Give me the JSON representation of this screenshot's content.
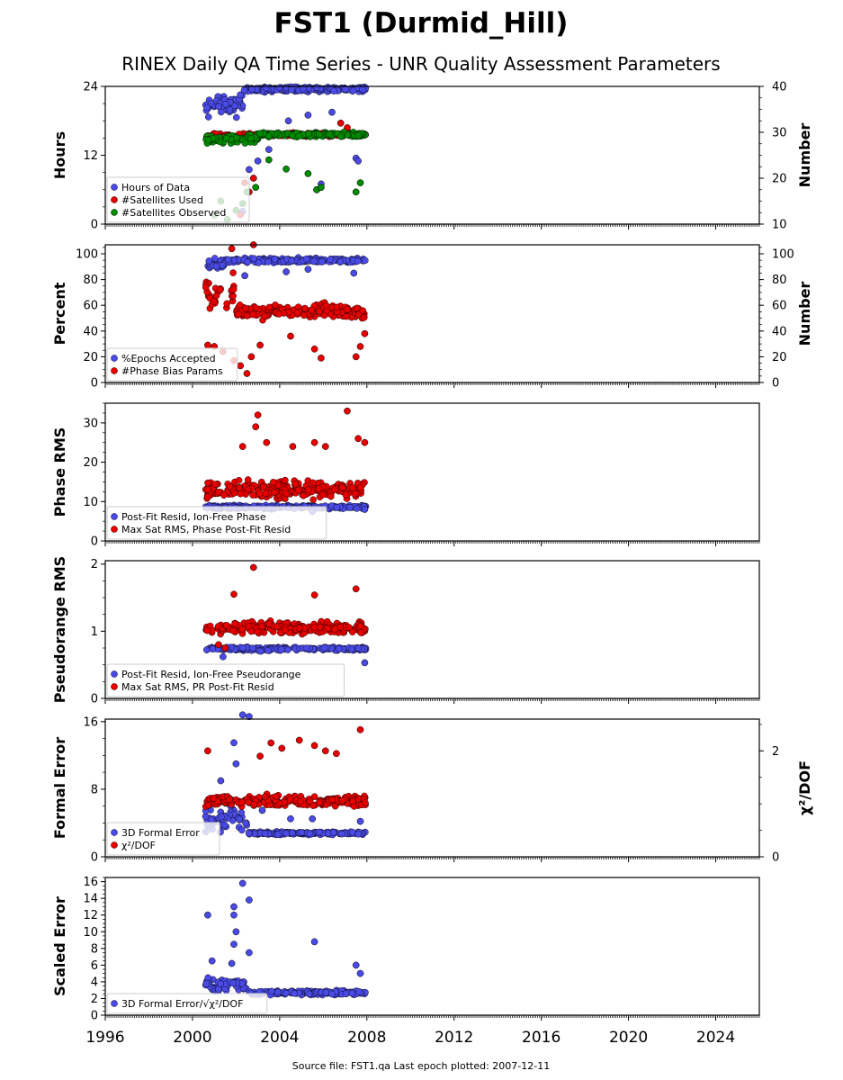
{
  "figure": {
    "title": "FST1 (Durmid_Hill)",
    "subtitle": "RINEX Daily QA Time Series - UNR Quality Assessment Parameters",
    "footer": "Source file: FST1.qa Last epoch plotted: 2007-12-11"
  },
  "colors": {
    "blue": "#4a4ae6",
    "red": "#e60000",
    "green": "#008a00",
    "edge": "#000000"
  },
  "chart_data": [
    {
      "type": "scatter",
      "id": "hours",
      "ylabel": "Hours",
      "ylabel_right": "Number",
      "xlim": [
        1996,
        2026
      ],
      "ylim": [
        0,
        24
      ],
      "yticks": [
        0,
        12,
        24
      ],
      "ylim_right": [
        10,
        40
      ],
      "yticks_right": [
        10,
        20,
        30,
        40
      ],
      "legend": "lower-left",
      "series": [
        {
          "name": "Hours of Data",
          "color": "blue",
          "axis": "left",
          "base": 23.5,
          "jitter": 0.6,
          "band_start": [
            2000.6,
            2002.3
          ],
          "band_start_base": 21,
          "band_start_jitter": 3,
          "outliers": [
            [
              2001.2,
              20.5
            ],
            [
              2002.3,
              2.2
            ],
            [
              2002.6,
              9.5
            ],
            [
              2003.0,
              11.0
            ],
            [
              2003.5,
              13.0
            ],
            [
              2004.4,
              18.0
            ],
            [
              2005.3,
              19.0
            ],
            [
              2005.7,
              6.0
            ],
            [
              2006.4,
              19.5
            ],
            [
              2007.5,
              11.5
            ],
            [
              2007.6,
              11.0
            ],
            [
              2005.9,
              7.0
            ]
          ]
        },
        {
          "name": "#Satellites Used",
          "color": "red",
          "axis": "right",
          "base": 29.5,
          "jitter": 0.5,
          "band_start": [
            2000.6,
            2002.3
          ],
          "band_start_base": 29,
          "band_start_jitter": 1,
          "outliers": [
            [
              2002.2,
              12
            ],
            [
              2002.4,
              19
            ],
            [
              2002.6,
              17
            ],
            [
              2002.8,
              20
            ],
            [
              2006.8,
              32
            ],
            [
              2007.1,
              31
            ]
          ]
        },
        {
          "name": "#Satellites Observed",
          "color": "green",
          "axis": "right",
          "base": 29.5,
          "jitter": 0.7,
          "band_start": [
            2000.6,
            2003.0
          ],
          "band_start_base": 28.5,
          "band_start_jitter": 1.2,
          "outliers": [
            [
              2001.0,
              12
            ],
            [
              2001.3,
              15
            ],
            [
              2001.6,
              11
            ],
            [
              2002.0,
              13
            ],
            [
              2002.3,
              14.5
            ],
            [
              2002.5,
              17
            ],
            [
              2002.9,
              18
            ],
            [
              2003.5,
              24
            ],
            [
              2004.3,
              22
            ],
            [
              2005.3,
              21
            ],
            [
              2005.7,
              17.5
            ],
            [
              2005.9,
              18
            ],
            [
              2007.5,
              17
            ],
            [
              2007.7,
              19
            ]
          ]
        }
      ]
    },
    {
      "type": "scatter",
      "id": "percent",
      "ylabel": "Percent",
      "ylabel_right": "Number",
      "xlim": [
        1996,
        2026
      ],
      "ylim": [
        0,
        107
      ],
      "yticks": [
        0,
        20,
        40,
        60,
        80,
        100
      ],
      "ylim_right": [
        0,
        107
      ],
      "yticks_right": [
        0,
        20,
        40,
        60,
        80,
        100
      ],
      "legend": "lower-left",
      "series": [
        {
          "name": "%Epochs Accepted",
          "color": "blue",
          "axis": "left",
          "base": 95,
          "jitter": 2.5,
          "band_start": [
            2000.6,
            2001.5
          ],
          "band_start_base": 92,
          "band_start_jitter": 5,
          "outliers": [
            [
              2002.4,
              83
            ],
            [
              2004.3,
              86
            ],
            [
              2005.3,
              88
            ],
            [
              2007.4,
              85
            ]
          ]
        },
        {
          "name": "#Phase Bias Params",
          "color": "red",
          "axis": "right",
          "base": 55,
          "jitter": 8,
          "band_start": [
            2000.6,
            2002.0
          ],
          "band_start_base": 68,
          "band_start_jitter": 20,
          "outliers": [
            [
              2000.7,
              29
            ],
            [
              2001.0,
              28
            ],
            [
              2001.4,
              24
            ],
            [
              2001.9,
              17
            ],
            [
              2002.2,
              13
            ],
            [
              2002.5,
              7
            ],
            [
              2002.7,
              20
            ],
            [
              2003.1,
              29
            ],
            [
              2004.5,
              36
            ],
            [
              2005.6,
              26
            ],
            [
              2005.9,
              19
            ],
            [
              2007.5,
              20
            ],
            [
              2007.7,
              28
            ],
            [
              2007.9,
              38
            ],
            [
              2001.8,
              104
            ],
            [
              2002.8,
              107
            ]
          ]
        }
      ]
    },
    {
      "type": "scatter",
      "id": "phase_rms",
      "ylabel": "Phase RMS",
      "xlim": [
        1996,
        2026
      ],
      "ylim": [
        0,
        35
      ],
      "yticks": [
        0,
        10,
        20,
        30
      ],
      "legend": "lower-left",
      "series": [
        {
          "name": "Post-Fit Resid, Ion-Free Phase",
          "color": "blue",
          "axis": "left",
          "base": 8.6,
          "jitter": 0.6,
          "outliers": [
            [
              2007.9,
              8.0
            ],
            [
              2005.5,
              7.5
            ]
          ]
        },
        {
          "name": "Max Sat RMS, Phase Post-Fit Resid",
          "color": "red",
          "axis": "left",
          "base": 13,
          "jitter": 3.2,
          "outliers": [
            [
              2002.3,
              24
            ],
            [
              2002.9,
              29
            ],
            [
              2003.0,
              32
            ],
            [
              2003.4,
              25
            ],
            [
              2004.6,
              24
            ],
            [
              2005.6,
              25
            ],
            [
              2006.1,
              24
            ],
            [
              2007.1,
              33
            ],
            [
              2007.6,
              26
            ],
            [
              2007.9,
              25
            ]
          ]
        }
      ]
    },
    {
      "type": "scatter",
      "id": "pseudorange_rms",
      "ylabel": "Pseudorange RMS",
      "xlim": [
        1996,
        2026
      ],
      "ylim": [
        0,
        2.05
      ],
      "yticks": [
        0,
        1,
        2
      ],
      "legend": "lower-left",
      "series": [
        {
          "name": "Post-Fit Resid, Ion-Free Pseudorange",
          "color": "blue",
          "axis": "left",
          "base": 0.74,
          "jitter": 0.04,
          "outliers": [
            [
              2007.9,
              0.53
            ],
            [
              2001.4,
              0.62
            ]
          ]
        },
        {
          "name": "Max Sat RMS, PR Post-Fit Resid",
          "color": "red",
          "axis": "left",
          "base": 1.05,
          "jitter": 0.12,
          "outliers": [
            [
              2002.8,
              1.95
            ],
            [
              2001.9,
              1.55
            ],
            [
              2005.6,
              1.54
            ],
            [
              2007.5,
              1.63
            ],
            [
              2001.5,
              0.75
            ],
            [
              2001.2,
              0.8
            ]
          ]
        }
      ]
    },
    {
      "type": "scatter",
      "id": "formal_error",
      "ylabel": "Formal Error",
      "ylabel_right": "χ²/DOF",
      "xlim": [
        1996,
        2026
      ],
      "ylim": [
        0,
        16.3
      ],
      "yticks": [
        0,
        8,
        16
      ],
      "ylim_right": [
        0,
        2.6
      ],
      "yticks_right": [
        0,
        2
      ],
      "legend": "lower-left",
      "series": [
        {
          "name": "3D Formal Error",
          "color": "blue",
          "axis": "left",
          "base": 2.8,
          "jitter": 0.25,
          "band_start": [
            2000.6,
            2002.5
          ],
          "band_start_base": 4.5,
          "band_start_jitter": 2.5,
          "outliers": [
            [
              2002.3,
              16.8
            ],
            [
              2002.6,
              16.6
            ],
            [
              2001.9,
              13.5
            ],
            [
              2002.0,
              11
            ],
            [
              2001.3,
              9
            ],
            [
              2003.2,
              5.5
            ],
            [
              2004.5,
              4.5
            ],
            [
              2005.5,
              4.5
            ],
            [
              2007.7,
              4.2
            ]
          ]
        },
        {
          "name": "χ²/DOF",
          "color": "red",
          "axis": "right",
          "base": 1.05,
          "jitter": 0.15,
          "outliers": [
            [
              2000.7,
              2.0
            ],
            [
              2003.6,
              2.15
            ],
            [
              2004.1,
              2.05
            ],
            [
              2004.9,
              2.2
            ],
            [
              2005.6,
              2.1
            ],
            [
              2006.1,
              2.0
            ],
            [
              2007.7,
              2.4
            ],
            [
              2003.1,
              1.9
            ],
            [
              2006.6,
              1.95
            ]
          ]
        }
      ]
    },
    {
      "type": "scatter",
      "id": "scaled_error",
      "ylabel": "Scaled Error",
      "xlim": [
        1996,
        2026
      ],
      "ylim": [
        0,
        16.5
      ],
      "yticks": [
        0,
        2,
        4,
        6,
        8,
        10,
        12,
        14,
        16
      ],
      "xticks": [
        1996,
        2000,
        2004,
        2008,
        2012,
        2016,
        2020,
        2024
      ],
      "legend": "lower-left",
      "series": [
        {
          "name": "3D Formal Error/√χ²/DOF",
          "color": "blue",
          "axis": "left",
          "base": 2.7,
          "jitter": 0.35,
          "band_start": [
            2000.6,
            2002.6
          ],
          "band_start_base": 3.6,
          "band_start_jitter": 1.3,
          "outliers": [
            [
              2000.7,
              12
            ],
            [
              2002.3,
              15.8
            ],
            [
              2002.6,
              13.8
            ],
            [
              2001.9,
              13
            ],
            [
              2001.9,
              12
            ],
            [
              2002.0,
              10
            ],
            [
              2001.9,
              8.5
            ],
            [
              2002.6,
              7.5
            ],
            [
              2005.6,
              8.8
            ],
            [
              2007.5,
              6.0
            ],
            [
              2000.9,
              6.5
            ],
            [
              2001.8,
              6.2
            ],
            [
              2007.7,
              5.0
            ]
          ]
        }
      ]
    }
  ]
}
